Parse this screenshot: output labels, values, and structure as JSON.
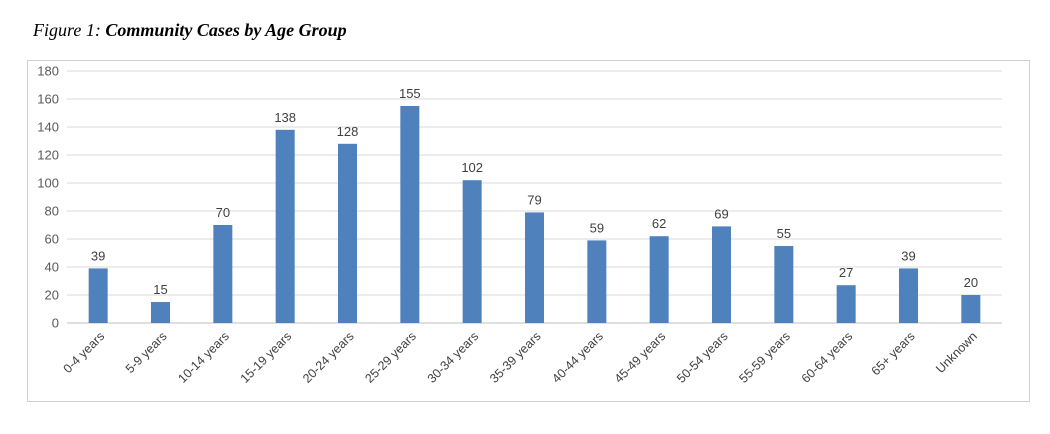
{
  "figure": {
    "prefix": "Figure 1:",
    "title": "Community Cases by Age Group"
  },
  "chart_data": {
    "type": "bar",
    "title": "Community Cases by Age Group",
    "categories": [
      "0-4 years",
      "5-9 years",
      "10-14 years",
      "15-19 years",
      "20-24 years",
      "25-29 years",
      "30-34 years",
      "35-39 years",
      "40-44 years",
      "45-49 years",
      "50-54 years",
      "55-59 years",
      "60-64 years",
      "65+ years",
      "Unknown"
    ],
    "values": [
      39,
      15,
      70,
      138,
      128,
      155,
      102,
      79,
      59,
      62,
      69,
      55,
      27,
      39,
      20
    ],
    "ylim": [
      0,
      180
    ],
    "yticks": [
      0,
      20,
      40,
      60,
      80,
      100,
      120,
      140,
      160,
      180
    ],
    "grid": true,
    "legend": "none",
    "colors": {
      "bar": "#4f81bd",
      "grid": "#d9d9d9",
      "axis": "#bfbfbf"
    }
  }
}
